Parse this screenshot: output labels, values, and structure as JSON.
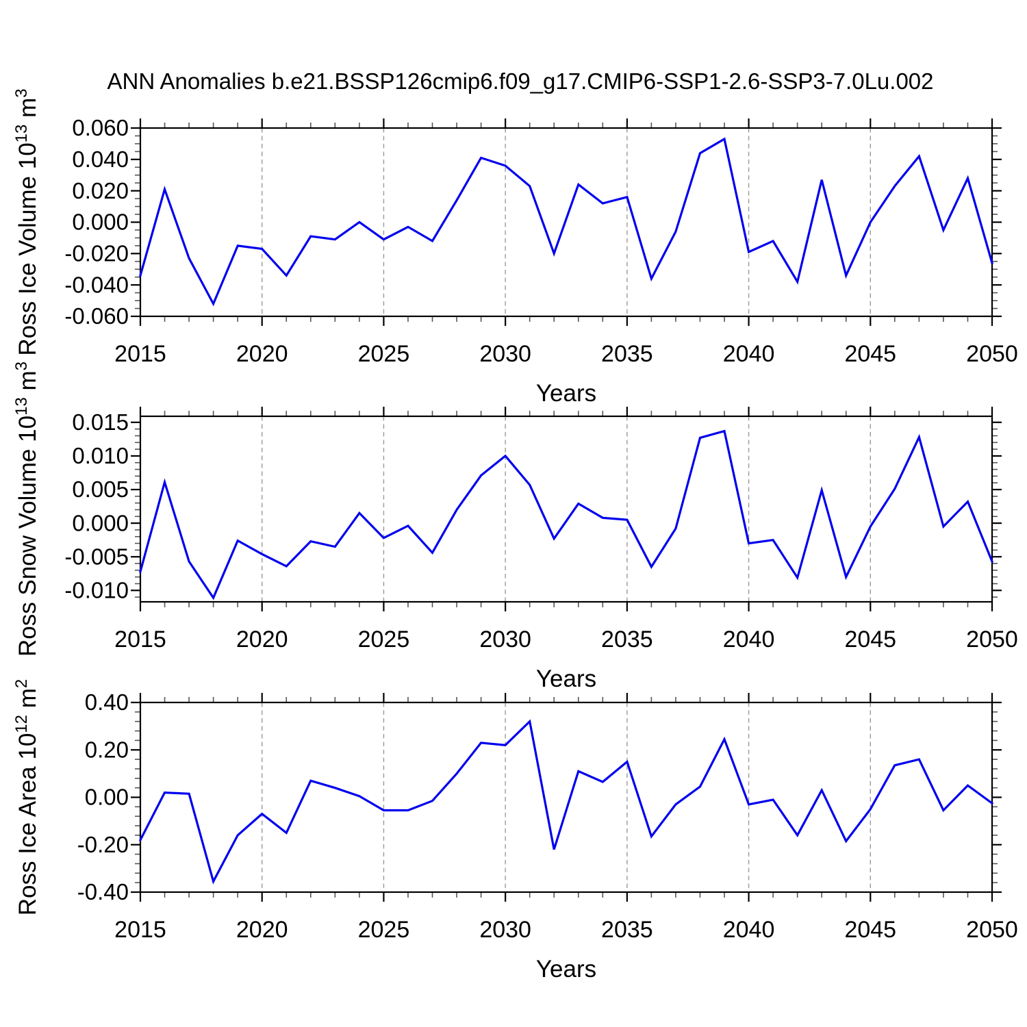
{
  "title": "ANN Anomalies b.e21.BSSP126cmip6.f09_g17.CMIP6-SSP1-2.6-SSP3-7.0Lu.002",
  "style": {
    "line_color": "#0000EE",
    "frame_color": "#000000",
    "grid_color": "#999999",
    "major_tick_color": "#000000",
    "minor_tick_color": "#555555",
    "background": "#ffffff"
  },
  "x_axis": {
    "label": "Years",
    "range": [
      2015,
      2050
    ],
    "major_ticks": [
      2015,
      2020,
      2025,
      2030,
      2035,
      2040,
      2045,
      2050
    ],
    "tick_labels": [
      "2015",
      "2020",
      "2025",
      "2030",
      "2035",
      "2040",
      "2045",
      "2050"
    ],
    "minor_step": 1,
    "gridline_years": [
      2020,
      2025,
      2030,
      2035,
      2040,
      2045
    ]
  },
  "chart_data": [
    {
      "type": "line",
      "name": "ross-ice-volume",
      "ylabel": "Ross Ice Volume 10^13 m^3",
      "ylabel_parts": [
        {
          "text": "Ross Ice Volume 10"
        },
        {
          "sup": "13"
        },
        {
          "text": " m"
        },
        {
          "sup": "3"
        }
      ],
      "xlabel": "Years",
      "ylim": [
        -0.06,
        0.06
      ],
      "yticks": [
        {
          "v": 0.06,
          "label": "0.060"
        },
        {
          "v": 0.04,
          "label": "0.040"
        },
        {
          "v": 0.02,
          "label": "0.020"
        },
        {
          "v": 0.0,
          "label": "0.000"
        },
        {
          "v": -0.02,
          "label": "-0.020"
        },
        {
          "v": -0.04,
          "label": "-0.040"
        },
        {
          "v": -0.06,
          "label": "-0.060"
        }
      ],
      "yminor_step": 0.005,
      "grid": "vertical-dashed",
      "legend": "none",
      "x": [
        2015,
        2016,
        2017,
        2018,
        2019,
        2020,
        2021,
        2022,
        2023,
        2024,
        2025,
        2026,
        2027,
        2028,
        2029,
        2030,
        2031,
        2032,
        2033,
        2034,
        2035,
        2036,
        2037,
        2038,
        2039,
        2040,
        2041,
        2042,
        2043,
        2044,
        2045,
        2046,
        2047,
        2048,
        2049,
        2050
      ],
      "values": [
        -0.034,
        0.021,
        -0.023,
        -0.052,
        -0.015,
        -0.017,
        -0.034,
        -0.009,
        -0.011,
        0.0,
        -0.011,
        -0.003,
        -0.012,
        0.014,
        0.041,
        0.036,
        0.023,
        -0.02,
        0.024,
        0.012,
        0.016,
        -0.036,
        -0.006,
        0.044,
        0.053,
        -0.019,
        -0.012,
        -0.038,
        0.027,
        -0.034,
        0.0,
        0.023,
        0.042,
        -0.005,
        0.028,
        -0.026
      ]
    },
    {
      "type": "line",
      "name": "ross-snow-volume",
      "ylabel": "Ross Snow Volume 10^13 m^3",
      "ylabel_parts": [
        {
          "text": "Ross Snow Volume 10"
        },
        {
          "sup": "13"
        },
        {
          "text": " m"
        },
        {
          "sup": "3"
        }
      ],
      "xlabel": "Years",
      "ylim": [
        -0.0117,
        0.0159
      ],
      "yticks": [
        {
          "v": 0.015,
          "label": "0.015"
        },
        {
          "v": 0.01,
          "label": "0.010"
        },
        {
          "v": 0.005,
          "label": "0.005"
        },
        {
          "v": 0.0,
          "label": "0.000"
        },
        {
          "v": -0.005,
          "label": "-0.005"
        },
        {
          "v": -0.01,
          "label": "-0.010"
        }
      ],
      "yminor_step": 0.001,
      "grid": "vertical-dashed",
      "legend": "none",
      "x": [
        2015,
        2016,
        2017,
        2018,
        2019,
        2020,
        2021,
        2022,
        2023,
        2024,
        2025,
        2026,
        2027,
        2028,
        2029,
        2030,
        2031,
        2032,
        2033,
        2034,
        2035,
        2036,
        2037,
        2038,
        2039,
        2040,
        2041,
        2042,
        2043,
        2044,
        2045,
        2046,
        2047,
        2048,
        2049,
        2050
      ],
      "values": [
        -0.0072,
        0.0061,
        -0.0057,
        -0.0111,
        -0.0026,
        -0.0046,
        -0.0064,
        -0.0027,
        -0.0035,
        0.0015,
        -0.0022,
        -0.0004,
        -0.0044,
        0.002,
        0.0071,
        0.01,
        0.0057,
        -0.0023,
        0.0029,
        0.0008,
        0.0005,
        -0.0065,
        -0.0008,
        0.0127,
        0.0137,
        -0.003,
        -0.0025,
        -0.0081,
        0.0049,
        -0.008,
        -0.0005,
        0.0051,
        0.0128,
        -0.0005,
        0.0032,
        -0.0057
      ]
    },
    {
      "type": "line",
      "name": "ross-ice-area",
      "ylabel": "Ross Ice Area 10^12 m^2",
      "ylabel_parts": [
        {
          "text": "Ross Ice Area 10"
        },
        {
          "sup": "12"
        },
        {
          "text": " m"
        },
        {
          "sup": "2"
        }
      ],
      "xlabel": "Years",
      "ylim": [
        -0.4,
        0.4
      ],
      "yticks": [
        {
          "v": 0.4,
          "label": "0.40"
        },
        {
          "v": 0.2,
          "label": "0.20"
        },
        {
          "v": 0.0,
          "label": "0.00"
        },
        {
          "v": -0.2,
          "label": "-0.20"
        },
        {
          "v": -0.4,
          "label": "-0.40"
        }
      ],
      "yminor_step": 0.04,
      "grid": "vertical-dashed",
      "legend": "none",
      "x": [
        2015,
        2016,
        2017,
        2018,
        2019,
        2020,
        2021,
        2022,
        2023,
        2024,
        2025,
        2026,
        2027,
        2028,
        2029,
        2030,
        2031,
        2032,
        2033,
        2034,
        2035,
        2036,
        2037,
        2038,
        2039,
        2040,
        2041,
        2042,
        2043,
        2044,
        2045,
        2046,
        2047,
        2048,
        2049,
        2050
      ],
      "values": [
        -0.18,
        0.02,
        0.015,
        -0.355,
        -0.16,
        -0.07,
        -0.15,
        0.07,
        0.04,
        0.005,
        -0.055,
        -0.055,
        -0.015,
        0.1,
        0.23,
        0.22,
        0.32,
        -0.22,
        0.11,
        0.065,
        0.15,
        -0.165,
        -0.03,
        0.045,
        0.245,
        -0.03,
        -0.01,
        -0.16,
        0.03,
        -0.185,
        -0.05,
        0.135,
        0.16,
        -0.055,
        0.05,
        -0.025
      ]
    }
  ]
}
